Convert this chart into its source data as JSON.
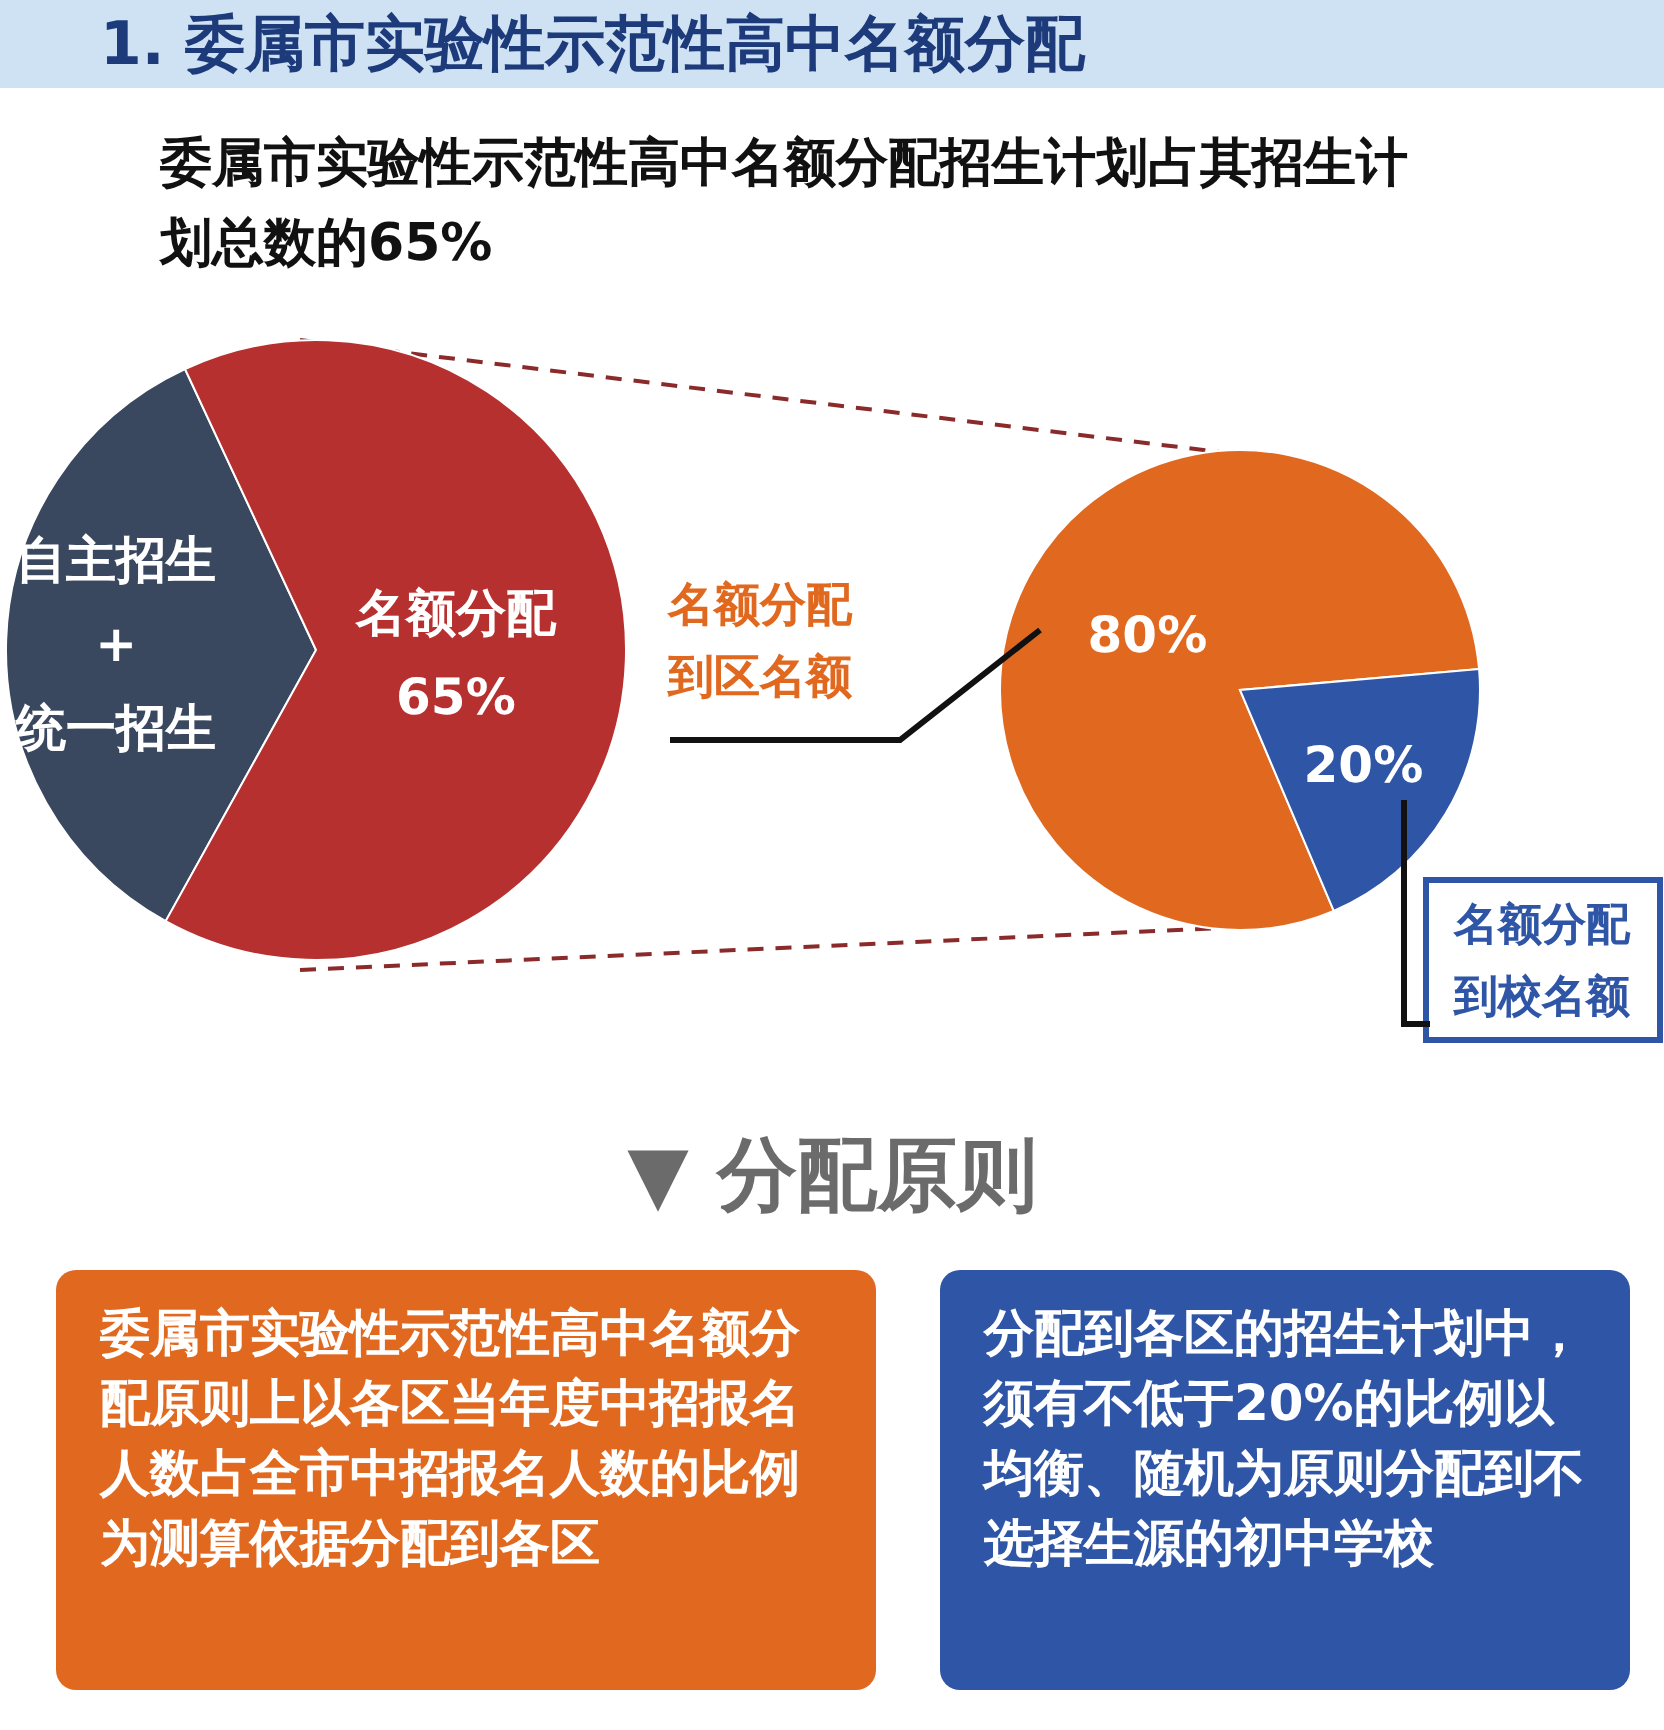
{
  "chart_data": [
    {
      "type": "pie",
      "title": "1. 委属市实验性示范性高中名额分配",
      "subtitle": "委属市实验性示范性高中名额分配招生计划占其招生计划总数的65%",
      "categories": [
        "自主招生\n+\n统一招生",
        "名额分配"
      ],
      "values": [
        35,
        65
      ],
      "colors": [
        "#39475f",
        "#b5302e"
      ],
      "value_labels": [
        null,
        "65%"
      ]
    },
    {
      "type": "pie",
      "categories": [
        "名额分配到区名额",
        "名额分配到校名额"
      ],
      "values": [
        80,
        20
      ],
      "colors": [
        "#e0691f",
        "#2f56a6"
      ],
      "value_labels": [
        "80%",
        "20%"
      ]
    },
    {
      "type": "other",
      "title": "▼ 分配原则",
      "annotations": [
        "委属市实验性示范性高中名额分配原则上以各区当年度中招报名人数占全市中招报名人数的比例为测算依据分配到各区",
        "分配到各区的招生计划中，须有不低于20%的比例以均衡、随机为原则分配到不选择生源的初中学校"
      ]
    }
  ]
}
